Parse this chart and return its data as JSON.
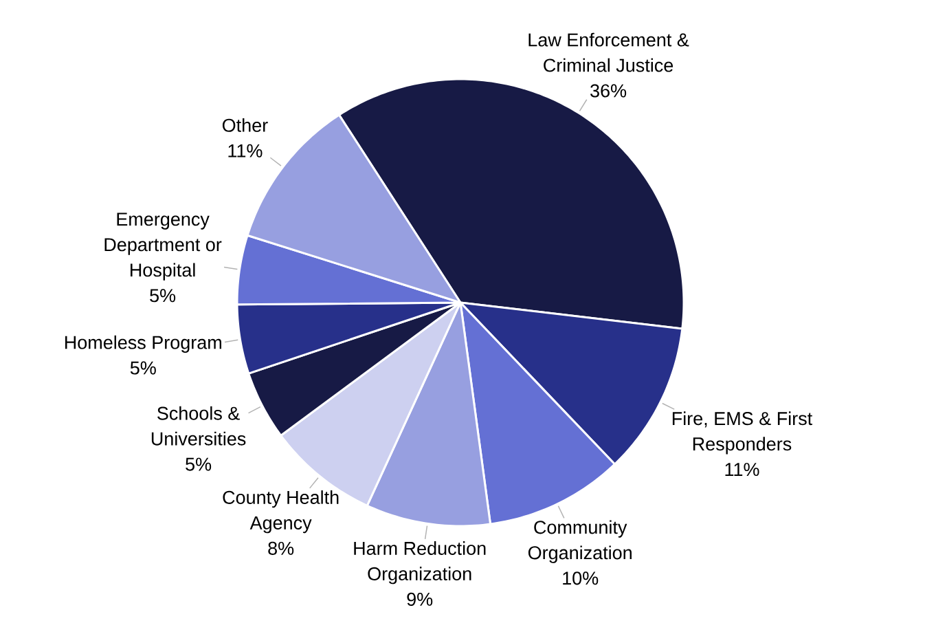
{
  "chart_data": {
    "type": "pie",
    "categories": [
      "Law Enforcement & Criminal Justice",
      "Fire, EMS & First Responders",
      "Community Organization",
      "Harm Reduction Organization",
      "County Health Agency",
      "Schools & Universities",
      "Homeless Program",
      "Emergency Department or Hospital",
      "Other"
    ],
    "values": [
      36,
      11,
      10,
      9,
      8,
      5,
      5,
      5,
      11
    ],
    "colors": [
      "#171a45",
      "#27308a",
      "#6470d4",
      "#979fe0",
      "#cdd0f0",
      "#171a45",
      "#27308a",
      "#6470d4",
      "#979fe0"
    ],
    "value_labels": [
      "36%",
      "11%",
      "10%",
      "9%",
      "8%",
      "5%",
      "5%",
      "5%",
      "11%"
    ]
  }
}
